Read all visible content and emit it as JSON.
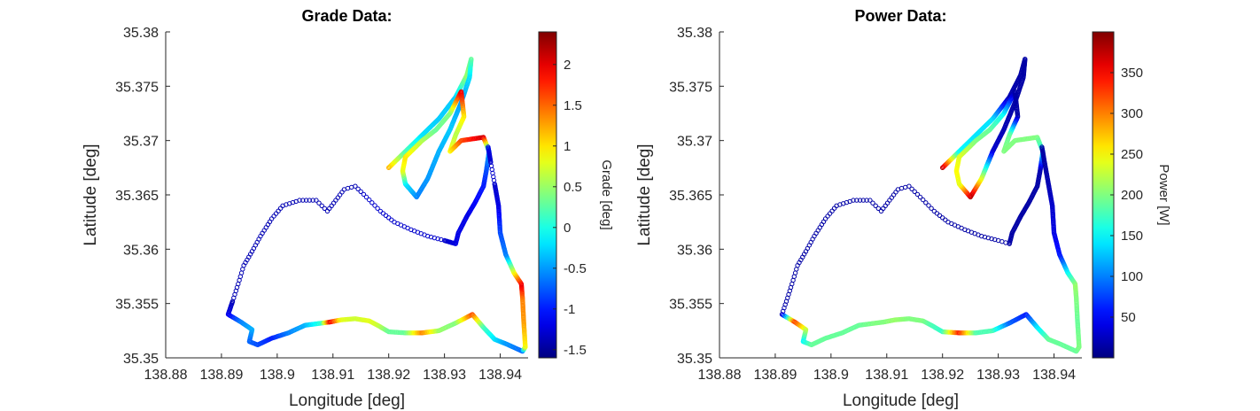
{
  "chart_data": [
    {
      "type": "scatter",
      "title": "Grade Data:",
      "xlabel": "Longitude [deg]",
      "ylabel": "Latitude [deg]",
      "xlim": [
        138.88,
        138.945
      ],
      "ylim": [
        35.35,
        35.38
      ],
      "xticks": [
        "138.88",
        "138.89",
        "138.9",
        "138.91",
        "138.92",
        "138.93",
        "138.94"
      ],
      "yticks": [
        "35.35",
        "35.355",
        "35.36",
        "35.365",
        "35.37",
        "35.375",
        "35.38"
      ],
      "colorbar": {
        "label": "Grade [deg]",
        "range": [
          -1.6,
          2.4
        ],
        "ticks": [
          "2",
          "1.5",
          "1",
          "0.5",
          "0",
          "-0.5",
          "-1",
          "-1.5"
        ],
        "colormap": "jet"
      },
      "route": [
        [
          138.92,
          35.3675,
          1.2
        ],
        [
          138.923,
          35.369,
          0.2
        ],
        [
          138.926,
          35.3705,
          -0.2
        ],
        [
          138.929,
          35.372,
          -0.3
        ],
        [
          138.932,
          35.374,
          -0.3
        ],
        [
          138.934,
          35.376,
          0.5
        ],
        [
          138.9348,
          35.3775,
          0.3
        ],
        [
          138.9345,
          35.3758,
          -0.2
        ],
        [
          138.933,
          35.3735,
          -0.5
        ],
        [
          138.931,
          35.371,
          -0.3
        ],
        [
          138.929,
          35.369,
          -0.4
        ],
        [
          138.927,
          35.3665,
          -0.5
        ],
        [
          138.925,
          35.3648,
          -0.6
        ],
        [
          138.923,
          35.366,
          -0.2
        ],
        [
          138.9225,
          35.3672,
          0.8
        ],
        [
          138.923,
          35.3685,
          1.0
        ],
        [
          138.926,
          35.37,
          0.6
        ],
        [
          138.9285,
          35.371,
          0.3
        ],
        [
          138.931,
          35.3725,
          0.4
        ],
        [
          138.933,
          35.3745,
          2.0
        ],
        [
          138.9335,
          35.3722,
          1.0
        ],
        [
          138.932,
          35.3705,
          0.6
        ],
        [
          138.931,
          35.369,
          0.9
        ],
        [
          138.933,
          35.37,
          1.6
        ],
        [
          138.937,
          35.3703,
          2.1
        ],
        [
          138.938,
          35.369,
          -0.4
        ],
        [
          138.9375,
          35.3672,
          -0.8
        ],
        [
          138.937,
          35.3658,
          -1.0
        ],
        [
          138.9355,
          35.3643,
          -1.1
        ],
        [
          138.934,
          35.363,
          -1.2
        ],
        [
          138.9325,
          35.3615,
          -1.2
        ],
        [
          138.932,
          35.3605,
          -1.2
        ],
        [
          138.93,
          35.3608,
          -1.3
        ],
        [
          138.927,
          35.3612,
          -1.3
        ],
        [
          138.924,
          35.3618,
          -1.3
        ],
        [
          138.921,
          35.3625,
          -1.3
        ],
        [
          138.9185,
          35.3635,
          -1.3
        ],
        [
          138.916,
          35.3648,
          -1.3
        ],
        [
          138.914,
          35.3658,
          -1.4
        ],
        [
          138.912,
          35.3655,
          -1.4
        ],
        [
          138.9105,
          35.3645,
          -1.4
        ],
        [
          138.909,
          35.3635,
          -1.4
        ],
        [
          138.907,
          35.3645,
          -1.4
        ],
        [
          138.904,
          35.3645,
          -1.4
        ],
        [
          138.901,
          35.364,
          -1.4
        ],
        [
          138.899,
          35.3628,
          -1.4
        ],
        [
          138.897,
          35.3612,
          -1.4
        ],
        [
          138.8955,
          35.3598,
          -1.4
        ],
        [
          138.894,
          35.3585,
          -1.4
        ],
        [
          138.893,
          35.3568,
          -1.4
        ],
        [
          138.892,
          35.3552,
          -1.4
        ],
        [
          138.8912,
          35.354,
          -1.2
        ],
        [
          138.8935,
          35.3533,
          -0.6
        ],
        [
          138.8955,
          35.3526,
          -0.4
        ],
        [
          138.895,
          35.3515,
          -0.7
        ],
        [
          138.8965,
          35.3512,
          -0.8
        ],
        [
          138.899,
          35.3518,
          -1.0
        ],
        [
          138.902,
          35.3523,
          -0.6
        ],
        [
          138.905,
          35.353,
          -0.4
        ],
        [
          138.908,
          35.3532,
          0.1
        ],
        [
          138.9095,
          35.3533,
          2.0
        ],
        [
          138.9115,
          35.3535,
          0.8
        ],
        [
          138.914,
          35.3536,
          0.7
        ],
        [
          138.9165,
          35.3534,
          0.8
        ],
        [
          138.918,
          35.353,
          0.7
        ],
        [
          138.92,
          35.3524,
          0.3
        ],
        [
          138.923,
          35.3523,
          0.3
        ],
        [
          138.926,
          35.3523,
          1.4
        ],
        [
          138.929,
          35.3525,
          0.5
        ],
        [
          138.932,
          35.3532,
          0.4
        ],
        [
          138.935,
          35.354,
          1.6
        ],
        [
          138.937,
          35.3528,
          0.2
        ],
        [
          138.939,
          35.3517,
          -0.2
        ],
        [
          138.941,
          35.3513,
          -0.5
        ],
        [
          138.944,
          35.3506,
          -0.7
        ],
        [
          138.9445,
          35.351,
          0.9
        ],
        [
          138.9442,
          35.3535,
          1.3
        ],
        [
          138.944,
          35.3555,
          1.4
        ],
        [
          138.9438,
          35.3568,
          2.0
        ],
        [
          138.9425,
          35.3578,
          1.0
        ],
        [
          138.941,
          35.3595,
          -0.6
        ],
        [
          138.94,
          35.3615,
          -0.8
        ],
        [
          138.9397,
          35.364,
          -1.2
        ],
        [
          138.939,
          35.366,
          -1.3
        ],
        [
          138.9383,
          35.368,
          -1.3
        ],
        [
          138.9378,
          35.3695,
          -1.2
        ]
      ]
    },
    {
      "type": "scatter",
      "title": "Power Data:",
      "xlabel": "Longitude [deg]",
      "ylabel": "Latitude [deg]",
      "xlim": [
        138.88,
        138.945
      ],
      "ylim": [
        35.35,
        35.38
      ],
      "xticks": [
        "138.88",
        "138.89",
        "138.9",
        "138.91",
        "138.92",
        "138.93",
        "138.94"
      ],
      "yticks": [
        "35.35",
        "35.355",
        "35.36",
        "35.365",
        "35.37",
        "35.375",
        "35.38"
      ],
      "colorbar": {
        "label": "Power [W]",
        "range": [
          0,
          400
        ],
        "ticks": [
          "350",
          "300",
          "250",
          "200",
          "150",
          "100",
          "50"
        ],
        "colormap": "jet"
      },
      "route": [
        [
          138.92,
          35.3675,
          380
        ],
        [
          138.923,
          35.369,
          150
        ],
        [
          138.926,
          35.3705,
          140
        ],
        [
          138.929,
          35.372,
          140
        ],
        [
          138.932,
          35.374,
          20
        ],
        [
          138.934,
          35.376,
          15
        ],
        [
          138.9348,
          35.3775,
          15
        ],
        [
          138.9345,
          35.3758,
          15
        ],
        [
          138.933,
          35.3735,
          15
        ],
        [
          138.931,
          35.371,
          20
        ],
        [
          138.929,
          35.369,
          30
        ],
        [
          138.927,
          35.3665,
          230
        ],
        [
          138.925,
          35.3648,
          380
        ],
        [
          138.923,
          35.366,
          240
        ],
        [
          138.9225,
          35.3672,
          250
        ],
        [
          138.923,
          35.3685,
          240
        ],
        [
          138.926,
          35.37,
          200
        ],
        [
          138.9285,
          35.371,
          190
        ],
        [
          138.931,
          35.3725,
          150
        ],
        [
          138.933,
          35.3745,
          15
        ],
        [
          138.9335,
          35.3722,
          15
        ],
        [
          138.932,
          35.3705,
          190
        ],
        [
          138.931,
          35.369,
          200
        ],
        [
          138.933,
          35.37,
          200
        ],
        [
          138.937,
          35.3703,
          200
        ],
        [
          138.938,
          35.369,
          160
        ],
        [
          138.9375,
          35.3672,
          20
        ],
        [
          138.937,
          35.3658,
          15
        ],
        [
          138.9355,
          35.3643,
          15
        ],
        [
          138.934,
          35.363,
          15
        ],
        [
          138.9325,
          35.3615,
          15
        ],
        [
          138.932,
          35.3605,
          15
        ],
        [
          138.93,
          35.3608,
          15
        ],
        [
          138.927,
          35.3612,
          15
        ],
        [
          138.924,
          35.3618,
          15
        ],
        [
          138.921,
          35.3625,
          15
        ],
        [
          138.9185,
          35.3635,
          15
        ],
        [
          138.916,
          35.3648,
          15
        ],
        [
          138.914,
          35.3658,
          15
        ],
        [
          138.912,
          35.3655,
          15
        ],
        [
          138.9105,
          35.3645,
          15
        ],
        [
          138.909,
          35.3635,
          15
        ],
        [
          138.907,
          35.3645,
          15
        ],
        [
          138.904,
          35.3645,
          15
        ],
        [
          138.901,
          35.364,
          15
        ],
        [
          138.899,
          35.3628,
          15
        ],
        [
          138.897,
          35.3612,
          15
        ],
        [
          138.8955,
          35.3598,
          15
        ],
        [
          138.894,
          35.3585,
          15
        ],
        [
          138.893,
          35.3568,
          15
        ],
        [
          138.892,
          35.3552,
          15
        ],
        [
          138.8912,
          35.354,
          20
        ],
        [
          138.8935,
          35.3533,
          330
        ],
        [
          138.8955,
          35.3526,
          230
        ],
        [
          138.895,
          35.3515,
          150
        ],
        [
          138.8965,
          35.3512,
          190
        ],
        [
          138.899,
          35.3518,
          190
        ],
        [
          138.902,
          35.3523,
          190
        ],
        [
          138.905,
          35.353,
          190
        ],
        [
          138.908,
          35.3532,
          200
        ],
        [
          138.9095,
          35.3533,
          200
        ],
        [
          138.9115,
          35.3535,
          210
        ],
        [
          138.914,
          35.3536,
          200
        ],
        [
          138.9165,
          35.3534,
          200
        ],
        [
          138.918,
          35.353,
          180
        ],
        [
          138.92,
          35.3524,
          170
        ],
        [
          138.923,
          35.3523,
          340
        ],
        [
          138.926,
          35.3523,
          180
        ],
        [
          138.929,
          35.3525,
          180
        ],
        [
          138.932,
          35.3532,
          90
        ],
        [
          138.935,
          35.354,
          60
        ],
        [
          138.937,
          35.3528,
          140
        ],
        [
          138.939,
          35.3517,
          190
        ],
        [
          138.941,
          35.3513,
          190
        ],
        [
          138.944,
          35.3506,
          190
        ],
        [
          138.9445,
          35.351,
          200
        ],
        [
          138.9442,
          35.3535,
          190
        ],
        [
          138.944,
          35.3555,
          200
        ],
        [
          138.9438,
          35.3568,
          210
        ],
        [
          138.9425,
          35.3578,
          160
        ],
        [
          138.941,
          35.3595,
          60
        ],
        [
          138.94,
          35.3615,
          40
        ],
        [
          138.9397,
          35.364,
          30
        ],
        [
          138.939,
          35.366,
          20
        ],
        [
          138.9383,
          35.368,
          15
        ],
        [
          138.9378,
          35.3695,
          15
        ]
      ]
    }
  ]
}
